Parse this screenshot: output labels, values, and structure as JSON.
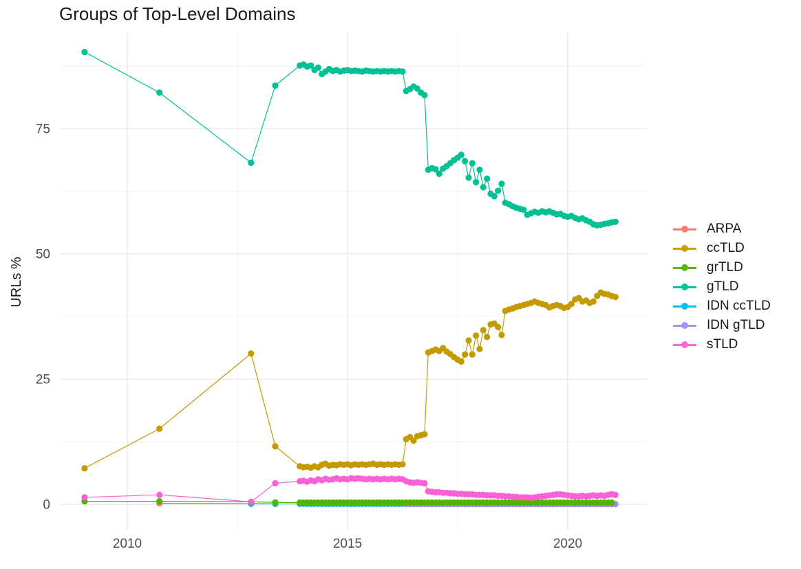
{
  "title": "Groups of Top-Level Domains",
  "chart_data": {
    "type": "line",
    "title": "Groups of Top-Level Domains",
    "xlabel": "",
    "ylabel": "URLs %",
    "x_ticks": [
      2010,
      2015,
      2020
    ],
    "x_minor_ticks": [
      2012.5,
      2017.5
    ],
    "y_ticks": [
      0,
      25,
      50,
      75
    ],
    "y_minor_ticks": [
      12.5,
      37.5,
      62.5,
      87.5
    ],
    "x_range": [
      2008.45,
      2021.8
    ],
    "y_range": [
      -5.1,
      94.1
    ],
    "grid": true,
    "legend_position": "right",
    "marker": "point",
    "dense_x_start": 2013.9167,
    "dense_x_step_years": 0.0833333,
    "dense_x_end": 2021.0833,
    "series": [
      {
        "name": "ARPA",
        "color": "#F8766D",
        "points": [
          [
            2010.73,
            0.2
          ],
          [
            2012.81,
            0.15
          ],
          [
            2013.36,
            0.1
          ]
        ]
      },
      {
        "name": "ccTLD",
        "color": "#C49A00",
        "points": [
          [
            2009.03,
            7.2
          ],
          [
            2010.73,
            15.1
          ],
          [
            2012.81,
            30.1
          ],
          [
            2013.36,
            11.6
          ]
        ],
        "dense_values": [
          7.6,
          7.4,
          7.5,
          7.3,
          7.6,
          7.4,
          7.9,
          8.1,
          7.7,
          7.9,
          7.8,
          8.0,
          7.9,
          8.0,
          7.8,
          8.0,
          7.9,
          8.0,
          7.9,
          8.0,
          8.1,
          7.9,
          8.0,
          7.9,
          8.0,
          7.9,
          8.0,
          7.9,
          8.0,
          13.0,
          13.4,
          12.7,
          13.6,
          13.8,
          14.0,
          30.3,
          30.6,
          30.9,
          30.6,
          31.2,
          30.5,
          30.0,
          29.4,
          28.9,
          28.5,
          29.9,
          32.7,
          29.9,
          33.7,
          31.0,
          34.8,
          33.4,
          35.9,
          36.1,
          35.4,
          33.8,
          38.6,
          38.9,
          39.1,
          39.4,
          39.6,
          39.8,
          40.0,
          40.2,
          40.5,
          40.2,
          40.0,
          39.8,
          39.3,
          39.6,
          39.8,
          39.6,
          39.2,
          39.4,
          40.0,
          40.9,
          41.2,
          40.5,
          40.7,
          40.2,
          40.5,
          41.6,
          42.3,
          42.0,
          41.9,
          41.6,
          41.4
        ]
      },
      {
        "name": "grTLD",
        "color": "#53B400",
        "points": [
          [
            2009.03,
            0.6
          ],
          [
            2010.73,
            0.6
          ],
          [
            2012.81,
            0.5
          ],
          [
            2013.36,
            0.4
          ]
        ],
        "dense_values": {
          "constant": 0.35
        }
      },
      {
        "name": "gTLD",
        "color": "#00C094",
        "points": [
          [
            2009.03,
            90.3
          ],
          [
            2010.73,
            82.2
          ],
          [
            2012.81,
            68.2
          ],
          [
            2013.36,
            83.6
          ]
        ],
        "dense_values": [
          87.6,
          87.8,
          87.4,
          87.6,
          86.7,
          87.2,
          85.9,
          86.4,
          86.9,
          86.5,
          86.7,
          86.4,
          86.6,
          86.7,
          86.5,
          86.6,
          86.5,
          86.4,
          86.6,
          86.5,
          86.4,
          86.5,
          86.4,
          86.5,
          86.4,
          86.5,
          86.4,
          86.5,
          86.4,
          82.5,
          82.9,
          83.4,
          83.0,
          82.2,
          81.7,
          66.8,
          67.1,
          66.9,
          66.0,
          67.0,
          67.5,
          68.1,
          68.7,
          69.2,
          69.8,
          68.5,
          65.2,
          68.1,
          64.3,
          66.8,
          63.3,
          65.0,
          62.0,
          61.5,
          62.6,
          64.0,
          60.2,
          59.9,
          59.5,
          59.2,
          59.0,
          58.8,
          57.8,
          58.1,
          58.4,
          58.2,
          58.5,
          58.3,
          58.5,
          58.2,
          57.9,
          58.0,
          57.6,
          57.4,
          57.6,
          57.2,
          56.9,
          57.1,
          56.7,
          56.4,
          55.9,
          55.7,
          55.8,
          56.0,
          56.1,
          56.3,
          56.4
        ]
      },
      {
        "name": "IDN ccTLD",
        "color": "#00B6EB",
        "points": [
          [
            2012.81,
            0.1
          ],
          [
            2013.36,
            0.1
          ]
        ],
        "dense_values": {
          "constant": 0.1
        }
      },
      {
        "name": "IDN gTLD",
        "color": "#A58AFF",
        "points": [],
        "dense_values": {
          "constant": 0.05,
          "start": 2016.3333
        }
      },
      {
        "name": "sTLD",
        "color": "#FB61D7",
        "points": [
          [
            2009.03,
            1.4
          ],
          [
            2010.73,
            1.9
          ],
          [
            2012.81,
            0.5
          ],
          [
            2013.36,
            4.2
          ]
        ],
        "dense_values": [
          4.6,
          4.7,
          4.5,
          4.8,
          4.6,
          5.0,
          4.8,
          5.1,
          4.9,
          5.0,
          5.2,
          5.0,
          5.1,
          5.0,
          5.2,
          5.1,
          5.2,
          5.1,
          5.0,
          5.1,
          5.0,
          5.1,
          5.0,
          5.1,
          5.0,
          5.1,
          5.0,
          5.1,
          5.0,
          4.6,
          4.4,
          4.3,
          4.4,
          4.3,
          4.2,
          2.6,
          2.5,
          2.4,
          2.4,
          2.3,
          2.3,
          2.2,
          2.2,
          2.1,
          2.1,
          2.0,
          2.0,
          2.0,
          1.9,
          1.9,
          1.9,
          1.8,
          1.8,
          1.8,
          1.7,
          1.7,
          1.6,
          1.6,
          1.5,
          1.5,
          1.4,
          1.4,
          1.4,
          1.3,
          1.4,
          1.5,
          1.6,
          1.7,
          1.8,
          1.9,
          2.0,
          2.0,
          1.9,
          1.8,
          1.7,
          1.6,
          1.6,
          1.7,
          1.6,
          1.7,
          1.8,
          1.7,
          1.8,
          1.7,
          1.9,
          2.0,
          1.9
        ]
      }
    ]
  }
}
